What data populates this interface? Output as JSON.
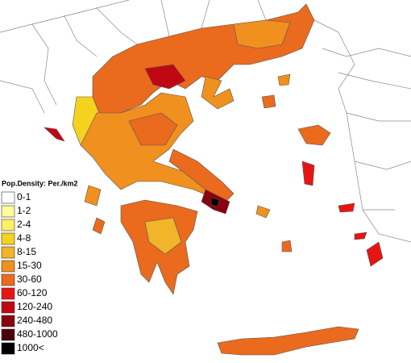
{
  "legend": {
    "title": "Pop.Density: Per./km2",
    "items": [
      {
        "label": "0-1",
        "color": "#ffffff"
      },
      {
        "label": "1-2",
        "color": "#ffff99"
      },
      {
        "label": "2-4",
        "color": "#fff066"
      },
      {
        "label": "4-8",
        "color": "#f5d21e"
      },
      {
        "label": "8-15",
        "color": "#f2b428"
      },
      {
        "label": "15-30",
        "color": "#f0901e"
      },
      {
        "label": "30-60",
        "color": "#ea6a1e"
      },
      {
        "label": "60-120",
        "color": "#e81414"
      },
      {
        "label": "120-240",
        "color": "#c00814"
      },
      {
        "label": "240-480",
        "color": "#8a0010"
      },
      {
        "label": "480-1000",
        "color": "#4a000c"
      },
      {
        "label": "1000<",
        "color": "#000000"
      }
    ]
  }
}
